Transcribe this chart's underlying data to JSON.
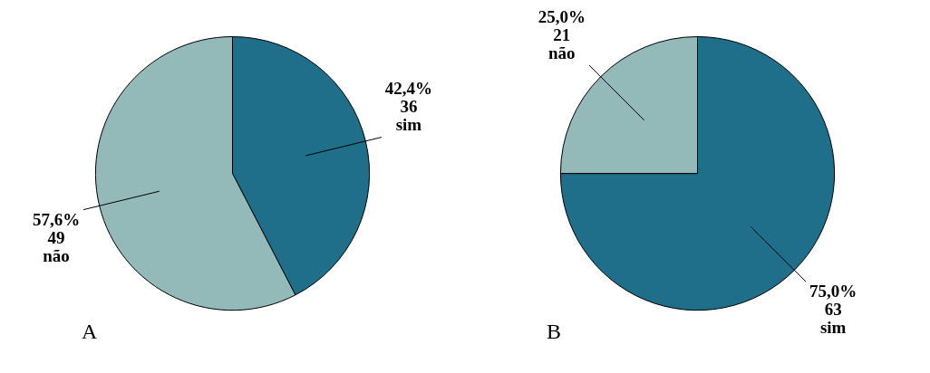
{
  "chart_data": [
    {
      "type": "pie",
      "title": "A",
      "categories": [
        "sim",
        "não"
      ],
      "values": [
        42.4,
        57.6
      ],
      "value_labels": [
        "42,4%\n36",
        "57,6%\n49"
      ],
      "colors": [
        "#1f6e8a",
        "#93b9b9"
      ]
    },
    {
      "type": "pie",
      "title": "B",
      "categories": [
        "sim",
        "não"
      ],
      "values": [
        75.0,
        25.0
      ],
      "value_labels": [
        "75,0%\n63",
        "25,0%\n21"
      ],
      "colors": [
        "#1f6e8a",
        "#93b9b9"
      ]
    }
  ]
}
